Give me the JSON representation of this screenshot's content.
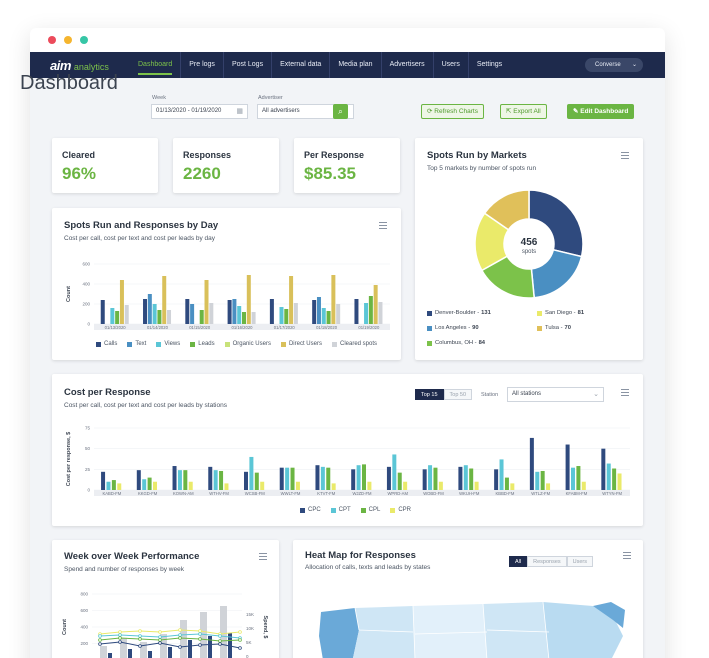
{
  "nav": {
    "logo": "aim",
    "logo_sub": "analytics",
    "items": [
      "Dashboard",
      "Pre logs",
      "Post Logs",
      "External data",
      "Media plan",
      "Advertisers",
      "Users",
      "Settings"
    ],
    "account": "Converse"
  },
  "header": {
    "title": "Dashboard",
    "week_label": "Week",
    "week_value": "01/13/2020 - 01/19/2020",
    "advertiser_label": "Advertiser",
    "advertiser_value": "All advertisers",
    "refresh_label": "Refresh Charts",
    "export_label": "Export All",
    "edit_label": "Edit Dashboard"
  },
  "kpis": [
    {
      "label": "Cleared",
      "value": "96%"
    },
    {
      "label": "Responses",
      "value": "2260"
    },
    {
      "label": "Per Response",
      "value": "$85.35"
    }
  ],
  "colors": {
    "calls": "#2f4a7e",
    "text": "#4a8fc2",
    "views": "#5bc6d6",
    "leads": "#6bb543",
    "organic": "#c8e27a",
    "direct": "#d9c05a",
    "cleared": "#d0d3d8",
    "cpc": "#2f4a7e",
    "cpt": "#5bc6d6",
    "cpl": "#6bb543",
    "cpr": "#eaea6a",
    "accent": "#6bb543",
    "navy": "#1e2a4c"
  },
  "spots_by_day": {
    "title": "Spots Run and Responses by Day",
    "subtitle": "Cost per call, cost per text and cost per leads by day",
    "ylabel": "Count",
    "chart_data": {
      "type": "bar",
      "categories": [
        "01/13/2020",
        "01/14/2020",
        "01/15/2020",
        "01/16/2020",
        "01/17/2020",
        "01/18/2020",
        "01/19/2020"
      ],
      "ylim": [
        0,
        600
      ],
      "yticks": [
        0,
        200,
        400,
        600
      ],
      "series": [
        {
          "name": "Calls",
          "key": "calls",
          "values": [
            240,
            250,
            250,
            240,
            250,
            240,
            250
          ]
        },
        {
          "name": "Text",
          "key": "text",
          "values": [
            0,
            300,
            200,
            250,
            0,
            270,
            0
          ]
        },
        {
          "name": "Views",
          "key": "views",
          "values": [
            160,
            200,
            0,
            180,
            170,
            160,
            210
          ]
        },
        {
          "name": "Leads",
          "key": "leads",
          "values": [
            130,
            140,
            140,
            120,
            150,
            130,
            280
          ]
        },
        {
          "name": "Organic Users",
          "key": "organic",
          "values": [
            0,
            0,
            0,
            0,
            0,
            0,
            0
          ]
        },
        {
          "name": "Direct Users",
          "key": "direct",
          "values": [
            440,
            480,
            440,
            490,
            480,
            490,
            390
          ]
        },
        {
          "name": "Cleared spots",
          "key": "cleared",
          "values": [
            190,
            140,
            210,
            120,
            210,
            200,
            220
          ]
        }
      ]
    }
  },
  "spots_by_markets": {
    "title": "Spots Run by Markets",
    "subtitle": "Top 5 markets by number of spots run",
    "center_value": "456",
    "center_label": "spots",
    "chart_data": {
      "type": "pie",
      "total": 456,
      "slices": [
        {
          "name": "Denver-Boulder",
          "value": 131,
          "color": "#2f4a7e"
        },
        {
          "name": "Los Angeles",
          "value": 90,
          "color": "#4a8fc2"
        },
        {
          "name": "Columbus, OH",
          "value": 84,
          "color": "#7cc24a"
        },
        {
          "name": "San Diego",
          "value": 81,
          "color": "#eaea6a"
        },
        {
          "name": "Tulsa",
          "value": 70,
          "color": "#e0c05a"
        }
      ]
    }
  },
  "cost_per_response": {
    "title": "Cost per Response",
    "subtitle": "Cost per call, cost per text and cost per leads by stations",
    "toggle": [
      "Top 15",
      "Top 50"
    ],
    "station_label": "Station",
    "station_value": "All stations",
    "ylabel": "Cost per response, $",
    "chart_data": {
      "type": "bar",
      "categories": [
        "KABD-FM",
        "KKGD-FM",
        "KOWN-AM",
        "WTHV-FM",
        "WCSB-FM",
        "WWLT-FM",
        "KTVT-FM",
        "WJZD-FM",
        "WPRD-AM",
        "WOBD-FM",
        "WKUH-FM",
        "KBBD-FM",
        "WTLZ-FM",
        "KFABM-FM",
        "WTYN-FM"
      ],
      "ylim": [
        0,
        75
      ],
      "yticks": [
        0,
        25,
        50,
        75
      ],
      "series": [
        {
          "name": "CPC",
          "key": "cpc",
          "values": [
            22,
            24,
            29,
            28,
            22,
            27,
            30,
            25,
            28,
            25,
            28,
            25,
            63,
            55,
            50
          ]
        },
        {
          "name": "CPT",
          "key": "cpt",
          "values": [
            10,
            13,
            24,
            24,
            40,
            27,
            28,
            30,
            43,
            30,
            30,
            37,
            22,
            27,
            32
          ]
        },
        {
          "name": "CPL",
          "key": "cpl",
          "values": [
            12,
            15,
            24,
            23,
            21,
            27,
            27,
            31,
            21,
            27,
            26,
            15,
            23,
            29,
            26
          ]
        },
        {
          "name": "CPR",
          "key": "cpr",
          "values": [
            8,
            10,
            10,
            8,
            10,
            10,
            8,
            10,
            10,
            10,
            10,
            8,
            8,
            10,
            20
          ]
        }
      ]
    }
  },
  "week_over_week": {
    "title": "Week over Week Performance",
    "subtitle": "Spend and number of responses by week",
    "ylabel_left": "Count",
    "ylabel_right": "Spend, $",
    "left_ticks": [
      "800",
      "600",
      "400",
      "200",
      "0"
    ],
    "right_ticks": [
      "15K",
      "10K",
      "5K",
      "0"
    ]
  },
  "heat_map": {
    "title": "Heat Map for Responses",
    "subtitle": "Allocation of calls, texts and leads by states",
    "toggle": [
      "All",
      "Responses",
      "Users"
    ]
  }
}
